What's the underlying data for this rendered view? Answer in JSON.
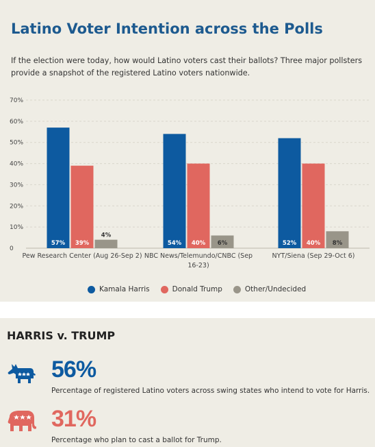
{
  "header": {
    "title": "Latino Voter Intention across the Polls",
    "subtitle": "If the election were today, how would Latino voters cast their ballots? Three major pollsters provide a snapshot of the registered Latino voters nationwide."
  },
  "colors": {
    "harris": "#0d5aa0",
    "trump": "#e0675f",
    "other": "#999589",
    "title": "#1d5a8f"
  },
  "chart_data": {
    "type": "bar",
    "title": "Latino Voter Intention across the Polls",
    "ylim": [
      0,
      70
    ],
    "yticks": [
      "0",
      "10%",
      "20%",
      "30%",
      "40%",
      "50%",
      "60%",
      "70%"
    ],
    "ytick_values": [
      0,
      10,
      20,
      30,
      40,
      50,
      60,
      70
    ],
    "grid": true,
    "legend_position": "bottom",
    "categories": [
      "Pew Research Center (Aug 26-Sep 2)",
      "NBC News/Telemundo/CNBC (Sep 16-23)",
      "NYT/Siena (Sep 29-Oct 6)"
    ],
    "category_label_lines": [
      [
        "Pew Research Center (Aug 26-Sep 2)"
      ],
      [
        "NBC News/Telemundo/CNBC (Sep",
        "16-23)"
      ],
      [
        "NYT/Siena (Sep 29-Oct 6)"
      ]
    ],
    "series": [
      {
        "name": "Kamala Harris",
        "values": [
          57,
          54,
          52
        ],
        "labels": [
          "57%",
          "54%",
          "52%"
        ]
      },
      {
        "name": "Donald Trump",
        "values": [
          39,
          40,
          40
        ],
        "labels": [
          "39%",
          "40%",
          "40%"
        ]
      },
      {
        "name": "Other/Undecided",
        "values": [
          4,
          6,
          8
        ],
        "labels": [
          "4%",
          "6%",
          "8%"
        ]
      }
    ]
  },
  "summary": {
    "title": "HARRIS v. TRUMP",
    "stats": [
      {
        "icon": "donkey-icon",
        "value": "56%",
        "description": "Percentage of registered Latino voters across swing states who intend to vote for Harris."
      },
      {
        "icon": "elephant-icon",
        "value": "31%",
        "description": "Percentage who plan to cast a ballot for Trump."
      }
    ]
  }
}
